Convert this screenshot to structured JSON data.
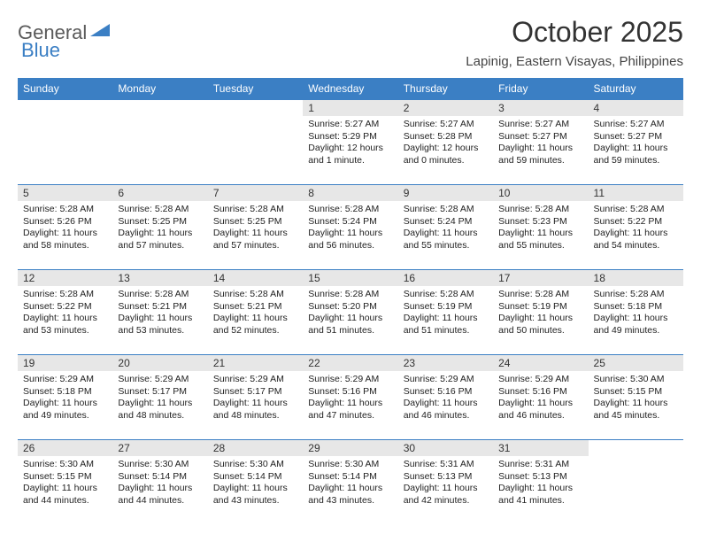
{
  "logo": {
    "part1": "General",
    "part2": "Blue"
  },
  "title": "October 2025",
  "subtitle": "Lapinig, Eastern Visayas, Philippines",
  "colors": {
    "header_bg": "#3b7fc4",
    "header_text": "#ffffff",
    "daynum_bg": "#e7e7e7",
    "row_border": "#3b7fc4",
    "logo_gray": "#5a5a5a",
    "logo_blue": "#3b7fc4"
  },
  "day_headers": [
    "Sunday",
    "Monday",
    "Tuesday",
    "Wednesday",
    "Thursday",
    "Friday",
    "Saturday"
  ],
  "weeks": [
    [
      null,
      null,
      null,
      {
        "n": "1",
        "sunrise": "5:27 AM",
        "sunset": "5:29 PM",
        "daylight": "12 hours and 1 minute."
      },
      {
        "n": "2",
        "sunrise": "5:27 AM",
        "sunset": "5:28 PM",
        "daylight": "12 hours and 0 minutes."
      },
      {
        "n": "3",
        "sunrise": "5:27 AM",
        "sunset": "5:27 PM",
        "daylight": "11 hours and 59 minutes."
      },
      {
        "n": "4",
        "sunrise": "5:27 AM",
        "sunset": "5:27 PM",
        "daylight": "11 hours and 59 minutes."
      }
    ],
    [
      {
        "n": "5",
        "sunrise": "5:28 AM",
        "sunset": "5:26 PM",
        "daylight": "11 hours and 58 minutes."
      },
      {
        "n": "6",
        "sunrise": "5:28 AM",
        "sunset": "5:25 PM",
        "daylight": "11 hours and 57 minutes."
      },
      {
        "n": "7",
        "sunrise": "5:28 AM",
        "sunset": "5:25 PM",
        "daylight": "11 hours and 57 minutes."
      },
      {
        "n": "8",
        "sunrise": "5:28 AM",
        "sunset": "5:24 PM",
        "daylight": "11 hours and 56 minutes."
      },
      {
        "n": "9",
        "sunrise": "5:28 AM",
        "sunset": "5:24 PM",
        "daylight": "11 hours and 55 minutes."
      },
      {
        "n": "10",
        "sunrise": "5:28 AM",
        "sunset": "5:23 PM",
        "daylight": "11 hours and 55 minutes."
      },
      {
        "n": "11",
        "sunrise": "5:28 AM",
        "sunset": "5:22 PM",
        "daylight": "11 hours and 54 minutes."
      }
    ],
    [
      {
        "n": "12",
        "sunrise": "5:28 AM",
        "sunset": "5:22 PM",
        "daylight": "11 hours and 53 minutes."
      },
      {
        "n": "13",
        "sunrise": "5:28 AM",
        "sunset": "5:21 PM",
        "daylight": "11 hours and 53 minutes."
      },
      {
        "n": "14",
        "sunrise": "5:28 AM",
        "sunset": "5:21 PM",
        "daylight": "11 hours and 52 minutes."
      },
      {
        "n": "15",
        "sunrise": "5:28 AM",
        "sunset": "5:20 PM",
        "daylight": "11 hours and 51 minutes."
      },
      {
        "n": "16",
        "sunrise": "5:28 AM",
        "sunset": "5:19 PM",
        "daylight": "11 hours and 51 minutes."
      },
      {
        "n": "17",
        "sunrise": "5:28 AM",
        "sunset": "5:19 PM",
        "daylight": "11 hours and 50 minutes."
      },
      {
        "n": "18",
        "sunrise": "5:28 AM",
        "sunset": "5:18 PM",
        "daylight": "11 hours and 49 minutes."
      }
    ],
    [
      {
        "n": "19",
        "sunrise": "5:29 AM",
        "sunset": "5:18 PM",
        "daylight": "11 hours and 49 minutes."
      },
      {
        "n": "20",
        "sunrise": "5:29 AM",
        "sunset": "5:17 PM",
        "daylight": "11 hours and 48 minutes."
      },
      {
        "n": "21",
        "sunrise": "5:29 AM",
        "sunset": "5:17 PM",
        "daylight": "11 hours and 48 minutes."
      },
      {
        "n": "22",
        "sunrise": "5:29 AM",
        "sunset": "5:16 PM",
        "daylight": "11 hours and 47 minutes."
      },
      {
        "n": "23",
        "sunrise": "5:29 AM",
        "sunset": "5:16 PM",
        "daylight": "11 hours and 46 minutes."
      },
      {
        "n": "24",
        "sunrise": "5:29 AM",
        "sunset": "5:16 PM",
        "daylight": "11 hours and 46 minutes."
      },
      {
        "n": "25",
        "sunrise": "5:30 AM",
        "sunset": "5:15 PM",
        "daylight": "11 hours and 45 minutes."
      }
    ],
    [
      {
        "n": "26",
        "sunrise": "5:30 AM",
        "sunset": "5:15 PM",
        "daylight": "11 hours and 44 minutes."
      },
      {
        "n": "27",
        "sunrise": "5:30 AM",
        "sunset": "5:14 PM",
        "daylight": "11 hours and 44 minutes."
      },
      {
        "n": "28",
        "sunrise": "5:30 AM",
        "sunset": "5:14 PM",
        "daylight": "11 hours and 43 minutes."
      },
      {
        "n": "29",
        "sunrise": "5:30 AM",
        "sunset": "5:14 PM",
        "daylight": "11 hours and 43 minutes."
      },
      {
        "n": "30",
        "sunrise": "5:31 AM",
        "sunset": "5:13 PM",
        "daylight": "11 hours and 42 minutes."
      },
      {
        "n": "31",
        "sunrise": "5:31 AM",
        "sunset": "5:13 PM",
        "daylight": "11 hours and 41 minutes."
      },
      null
    ]
  ],
  "labels": {
    "sunrise": "Sunrise:",
    "sunset": "Sunset:",
    "daylight": "Daylight:"
  }
}
